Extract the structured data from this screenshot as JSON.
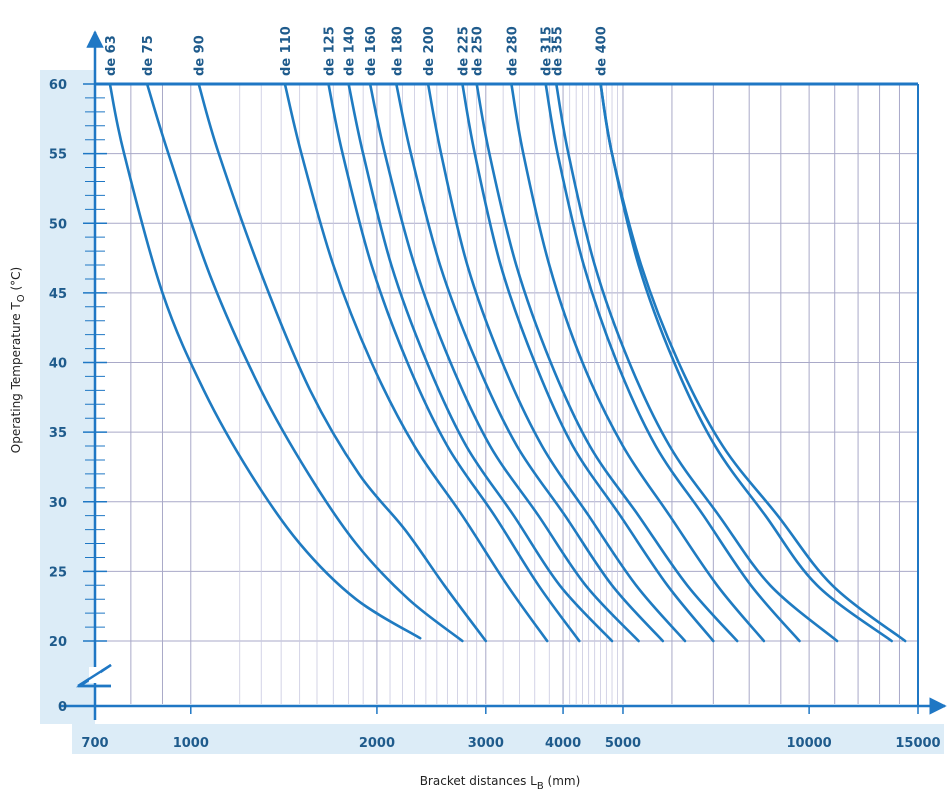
{
  "chart_data": {
    "type": "line",
    "title": "",
    "xlabel": "Bracket distances L",
    "xlabel_sub": "B",
    "xlabel_unit": " (mm)",
    "ylabel": "Operating Temperature T",
    "ylabel_sub": "O",
    "ylabel_unit": " (°C)",
    "x_scale": "log",
    "xlim": [
      700,
      15000
    ],
    "ylim": [
      0,
      60
    ],
    "x_tick_labels": [
      "700",
      "1000",
      "2000",
      "3000",
      "4000",
      "5000",
      "10000",
      "15000"
    ],
    "y_tick_labels": [
      "0",
      "20",
      "25",
      "30",
      "35",
      "40",
      "45",
      "50",
      "55",
      "60"
    ],
    "grid": true,
    "colors": {
      "series": "#1f7bc1",
      "axis": "#1f77c4",
      "grid_major": "#a9a9c8",
      "grid_minor": "#c9c9e0",
      "label_text": "#1f5b8c",
      "band": "#dcecf7"
    },
    "series": [
      {
        "name": "de 63",
        "x": [
          740,
          780,
          900,
          1050,
          1250,
          1500,
          1850,
          2350
        ],
        "y": [
          60,
          55,
          45,
          38,
          32,
          27,
          23,
          20.2
        ]
      },
      {
        "name": "de 75",
        "x": [
          850,
          920,
          1080,
          1300,
          1550,
          1850,
          2250,
          2750
        ],
        "y": [
          60,
          55,
          46,
          38,
          32,
          27,
          23,
          20
        ]
      },
      {
        "name": "de 90",
        "x": [
          1030,
          1110,
          1310,
          1560,
          1870,
          2220,
          2570,
          3000
        ],
        "y": [
          60,
          55,
          46,
          38,
          32,
          28,
          24,
          20
        ]
      },
      {
        "name": "de 110",
        "x": [
          1420,
          1510,
          1700,
          1960,
          2300,
          2750,
          3250,
          3770
        ],
        "y": [
          60,
          55,
          47,
          40,
          34,
          29,
          24,
          20
        ]
      },
      {
        "name": "de 125",
        "x": [
          1670,
          1760,
          1960,
          2240,
          2600,
          3100,
          3650,
          4250
        ],
        "y": [
          60,
          55,
          47,
          40,
          34,
          29,
          24,
          20
        ]
      },
      {
        "name": "de 140",
        "x": [
          1800,
          1900,
          2110,
          2410,
          2790,
          3330,
          3950,
          4800
        ],
        "y": [
          60,
          55,
          47,
          40,
          34,
          29,
          24,
          20
        ]
      },
      {
        "name": "de 160",
        "x": [
          1950,
          2060,
          2300,
          2630,
          3050,
          3650,
          4350,
          5300
        ],
        "y": [
          60,
          55,
          47,
          40,
          34,
          29,
          24,
          20
        ]
      },
      {
        "name": "de 180",
        "x": [
          2150,
          2270,
          2530,
          2900,
          3370,
          4030,
          4800,
          5800
        ],
        "y": [
          60,
          55,
          47,
          40,
          34,
          29,
          24,
          20
        ]
      },
      {
        "name": "de 200",
        "x": [
          2420,
          2540,
          2800,
          3190,
          3700,
          4400,
          5250,
          6300
        ],
        "y": [
          60,
          55,
          47,
          40,
          34,
          29,
          24,
          20
        ]
      },
      {
        "name": "de 225",
        "x": [
          2750,
          2880,
          3170,
          3600,
          4150,
          4950,
          5900,
          7000
        ],
        "y": [
          60,
          55,
          47,
          40,
          34,
          29,
          24,
          20
        ]
      },
      {
        "name": "de 250",
        "x": [
          2900,
          3040,
          3360,
          3820,
          4420,
          5300,
          6350,
          7650
        ],
        "y": [
          60,
          55,
          47,
          40,
          34,
          29,
          24,
          20
        ]
      },
      {
        "name": "de 280",
        "x": [
          3300,
          3450,
          3800,
          4300,
          5000,
          5950,
          7100,
          8450
        ],
        "y": [
          60,
          55,
          47,
          40,
          34,
          29,
          24,
          20
        ]
      },
      {
        "name": "de 315",
        "x": [
          3750,
          3920,
          4320,
          4890,
          5650,
          6750,
          8050,
          9650
        ],
        "y": [
          60,
          55,
          47,
          40,
          34,
          29,
          24,
          20
        ]
      },
      {
        "name": "de 355",
        "x": [
          3900,
          4080,
          4500,
          5120,
          5950,
          7150,
          8650,
          11100
        ],
        "y": [
          60,
          55,
          47,
          40,
          34,
          29,
          24,
          20
        ]
      },
      {
        "name": "de 400",
        "x": [
          4600,
          4800,
          5300,
          6050,
          7050,
          8500,
          10300,
          13600
        ],
        "y": [
          60,
          55,
          47,
          40,
          34,
          29,
          24,
          20
        ]
      },
      {
        "name": "",
        "x": [
          4600,
          4800,
          5350,
          6150,
          7250,
          8900,
          10900,
          14300
        ],
        "y": [
          60,
          55,
          47,
          40,
          34,
          29,
          24,
          20
        ]
      }
    ]
  }
}
